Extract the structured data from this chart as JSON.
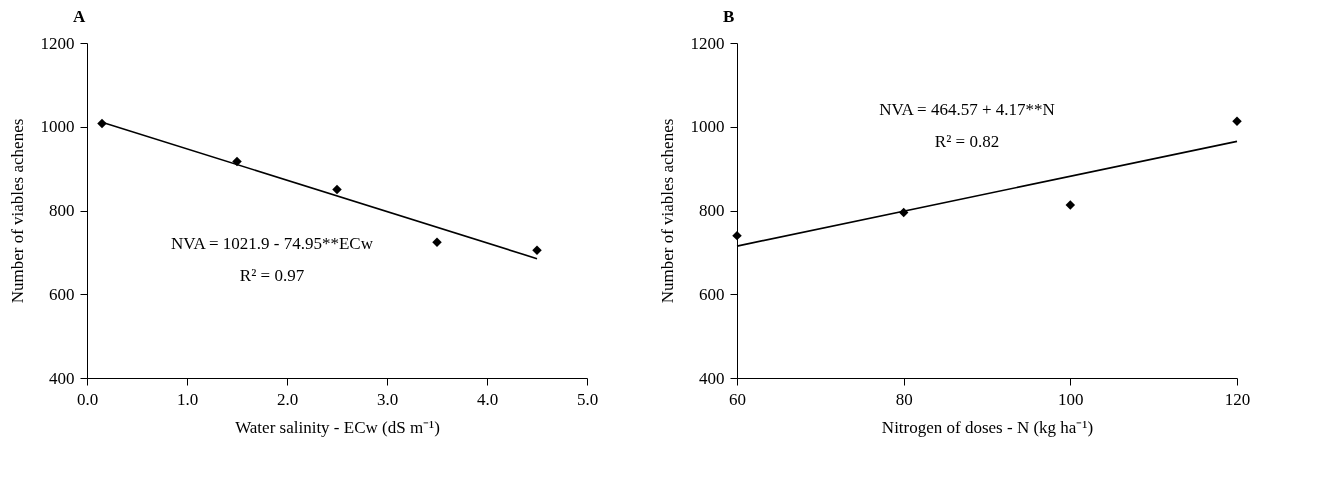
{
  "chart_data": [
    {
      "type": "scatter",
      "title": "A",
      "xlabel": "Water salinity - ECw (dS m⁻¹)",
      "ylabel": "Number of viables achenes",
      "xlim": [
        0,
        5
      ],
      "ylim": [
        400,
        1200
      ],
      "xticks": [
        {
          "value": 0,
          "label": "0.0"
        },
        {
          "value": 1,
          "label": "1.0"
        },
        {
          "value": 2,
          "label": "2.0"
        },
        {
          "value": 3,
          "label": "3.0"
        },
        {
          "value": 4,
          "label": "4.0"
        },
        {
          "value": 5,
          "label": "5.0"
        }
      ],
      "yticks": [
        400,
        600,
        800,
        1000,
        1200
      ],
      "x": [
        0.15,
        1.5,
        2.5,
        3.5,
        4.5
      ],
      "series": [
        {
          "color": "#000000",
          "marker": "diamond",
          "values": [
            1008,
            917,
            850,
            724,
            705
          ]
        },
        {
          "type": "line",
          "color": "#000000",
          "x": [
            0.15,
            4.5
          ],
          "values": [
            1011,
            685
          ]
        }
      ],
      "annotations": [
        "NVA = 1021.9 - 74.95**ECw",
        "R² = 0.97"
      ]
    },
    {
      "type": "scatter",
      "title": "B",
      "xlabel": "Nitrogen of doses - N (kg ha⁻¹)",
      "ylabel": "Number of viables achenes",
      "xlim": [
        60,
        120
      ],
      "ylim": [
        400,
        1200
      ],
      "xticks": [
        60,
        80,
        100,
        120
      ],
      "yticks": [
        400,
        600,
        800,
        1000,
        1200
      ],
      "x": [
        60,
        80,
        100,
        120
      ],
      "series": [
        {
          "color": "#000000",
          "marker": "diamond",
          "values": [
            740,
            795,
            813,
            1013
          ]
        },
        {
          "type": "line",
          "color": "#000000",
          "x": [
            60,
            120
          ],
          "values": [
            715,
            965
          ]
        }
      ],
      "annotations": [
        "NVA =  464.57 + 4.17**N",
        "R² = 0.82"
      ]
    }
  ]
}
